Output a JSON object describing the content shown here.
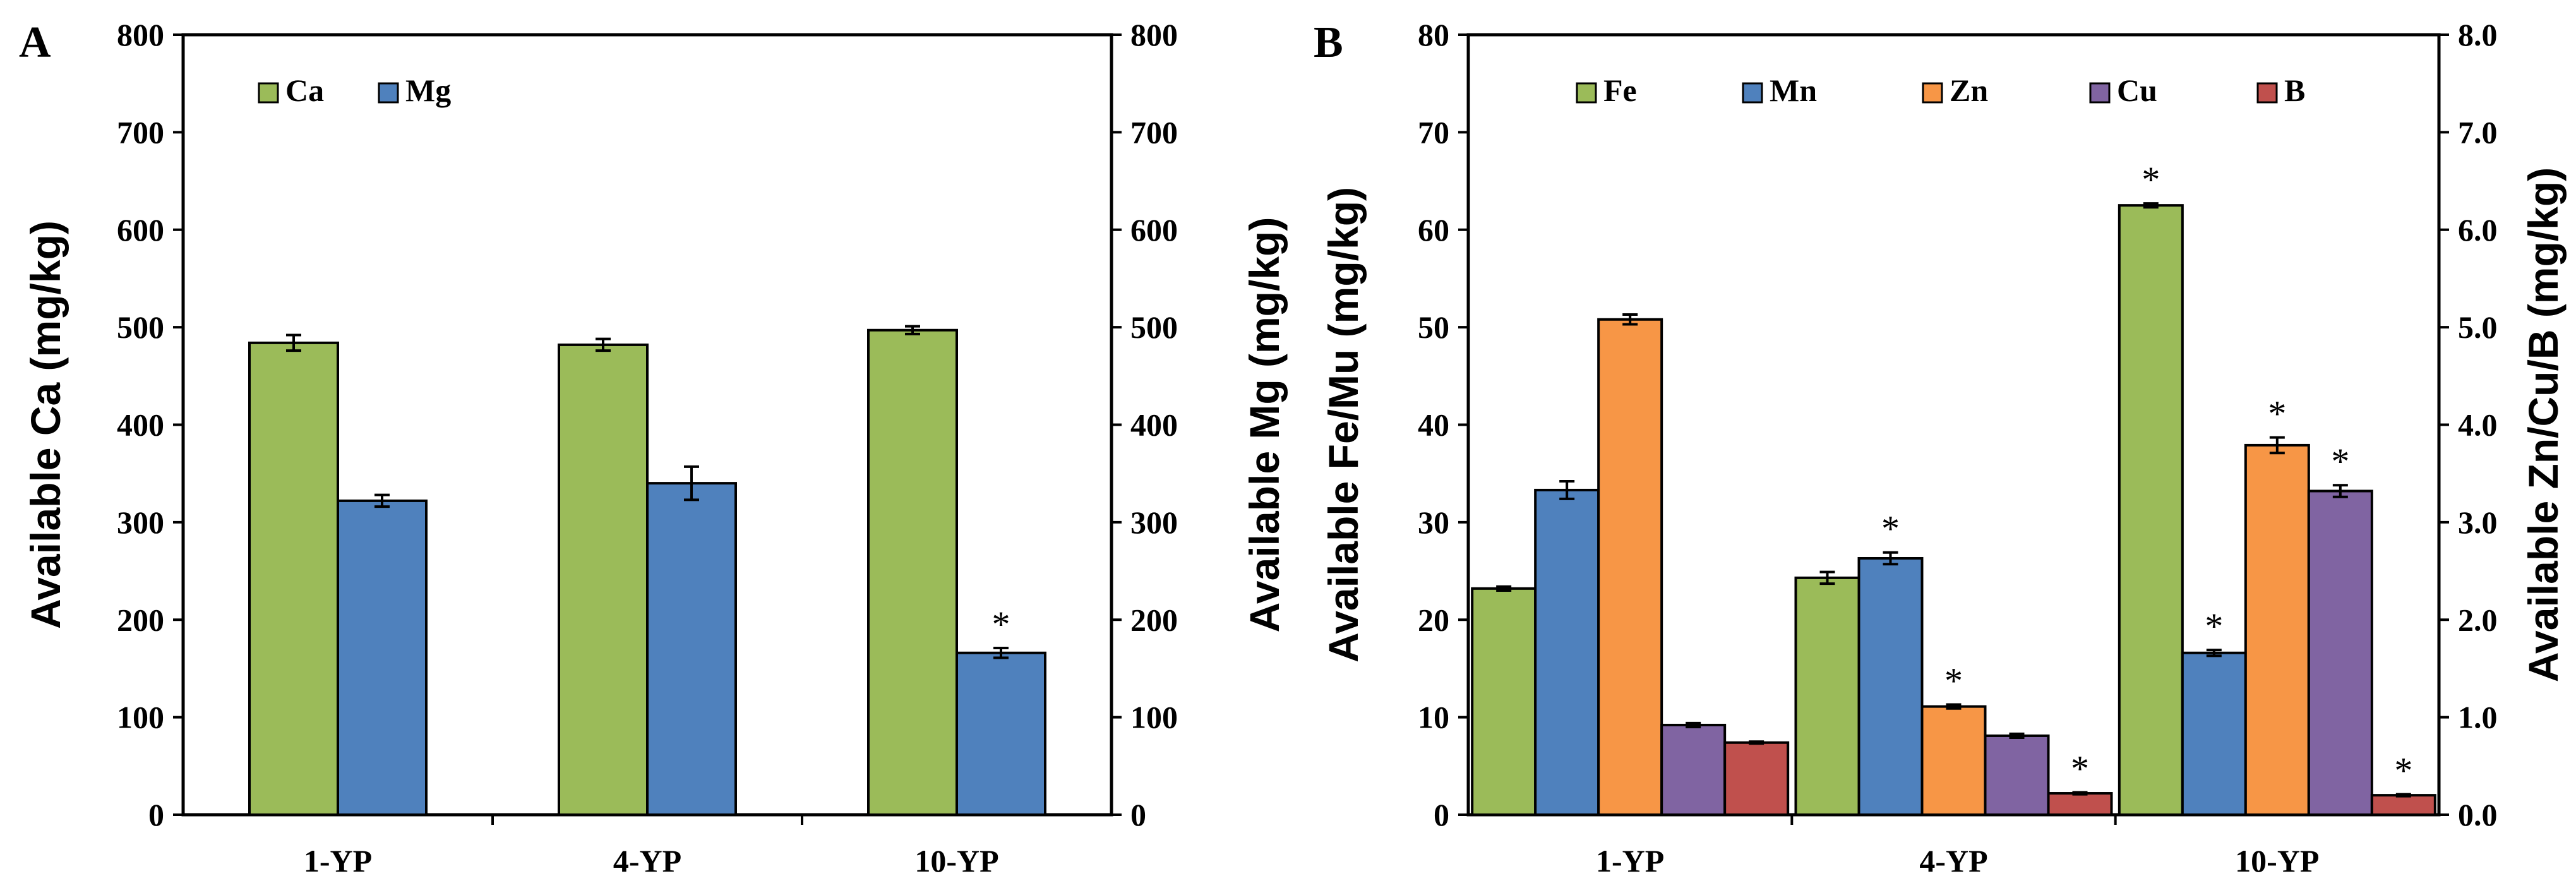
{
  "chart_data": [
    {
      "type": "bar",
      "panel_label": "A",
      "categories": [
        "1-YP",
        "4-YP",
        "10-YP"
      ],
      "series": [
        {
          "name": "Ca",
          "color": "#9BBB59",
          "axis": "left",
          "values": [
            484,
            482,
            497
          ],
          "errors": [
            8,
            6,
            4
          ],
          "significant": [
            false,
            false,
            false
          ]
        },
        {
          "name": "Mg",
          "color": "#4F81BD",
          "axis": "right",
          "values": [
            322,
            340,
            166
          ],
          "errors": [
            6,
            17,
            5
          ],
          "significant": [
            false,
            false,
            true
          ]
        }
      ],
      "ylabel_left": "Available Ca (mg/kg)",
      "ylabel_right": "Available Mg (mg/kg)",
      "ylim_left": [
        0,
        800
      ],
      "ylim_right": [
        0,
        800
      ],
      "yticks_left": [
        "0",
        "100",
        "200",
        "300",
        "400",
        "500",
        "600",
        "700",
        "800"
      ],
      "yticks_right": [
        "0",
        "100",
        "200",
        "300",
        "400",
        "500",
        "600",
        "700",
        "800"
      ],
      "legend_position": "top-left",
      "significance_marker": "*"
    },
    {
      "type": "bar",
      "panel_label": "B",
      "categories": [
        "1-YP",
        "4-YP",
        "10-YP"
      ],
      "series": [
        {
          "name": "Fe",
          "color": "#9BBB59",
          "axis": "left",
          "values": [
            23.2,
            24.3,
            62.5
          ],
          "errors": [
            0.2,
            0.6,
            0.2
          ],
          "significant": [
            false,
            false,
            true
          ]
        },
        {
          "name": "Mn",
          "color": "#4F81BD",
          "axis": "left",
          "values": [
            33.3,
            26.3,
            16.6
          ],
          "errors": [
            0.9,
            0.6,
            0.3
          ],
          "significant": [
            false,
            true,
            true
          ]
        },
        {
          "name": "Zn",
          "color": "#F79646",
          "axis": "right",
          "values": [
            5.08,
            1.11,
            3.79
          ],
          "errors": [
            0.05,
            0.02,
            0.08
          ],
          "significant": [
            false,
            true,
            true
          ]
        },
        {
          "name": "Cu",
          "color": "#8064A2",
          "axis": "right",
          "values": [
            0.92,
            0.81,
            3.32
          ],
          "errors": [
            0.02,
            0.02,
            0.06
          ],
          "significant": [
            false,
            false,
            true
          ]
        },
        {
          "name": "B",
          "color": "#C0504D",
          "axis": "right",
          "values": [
            0.74,
            0.22,
            0.2
          ],
          "errors": [
            0.01,
            0.01,
            0.01
          ],
          "significant": [
            false,
            true,
            true
          ]
        }
      ],
      "ylabel_left": "Available Fe/Mu (mg/kg)",
      "ylabel_right": "Available Zn/Cu/B (mg/kg)",
      "ylim_left": [
        0,
        80
      ],
      "ylim_right": [
        0,
        8
      ],
      "yticks_left": [
        "0",
        "10",
        "20",
        "30",
        "40",
        "50",
        "60",
        "70",
        "80"
      ],
      "yticks_right": [
        "0.0",
        "1.0",
        "2.0",
        "3.0",
        "4.0",
        "5.0",
        "6.0",
        "7.0",
        "8.0"
      ],
      "legend_position": "top",
      "significance_marker": "*"
    }
  ]
}
